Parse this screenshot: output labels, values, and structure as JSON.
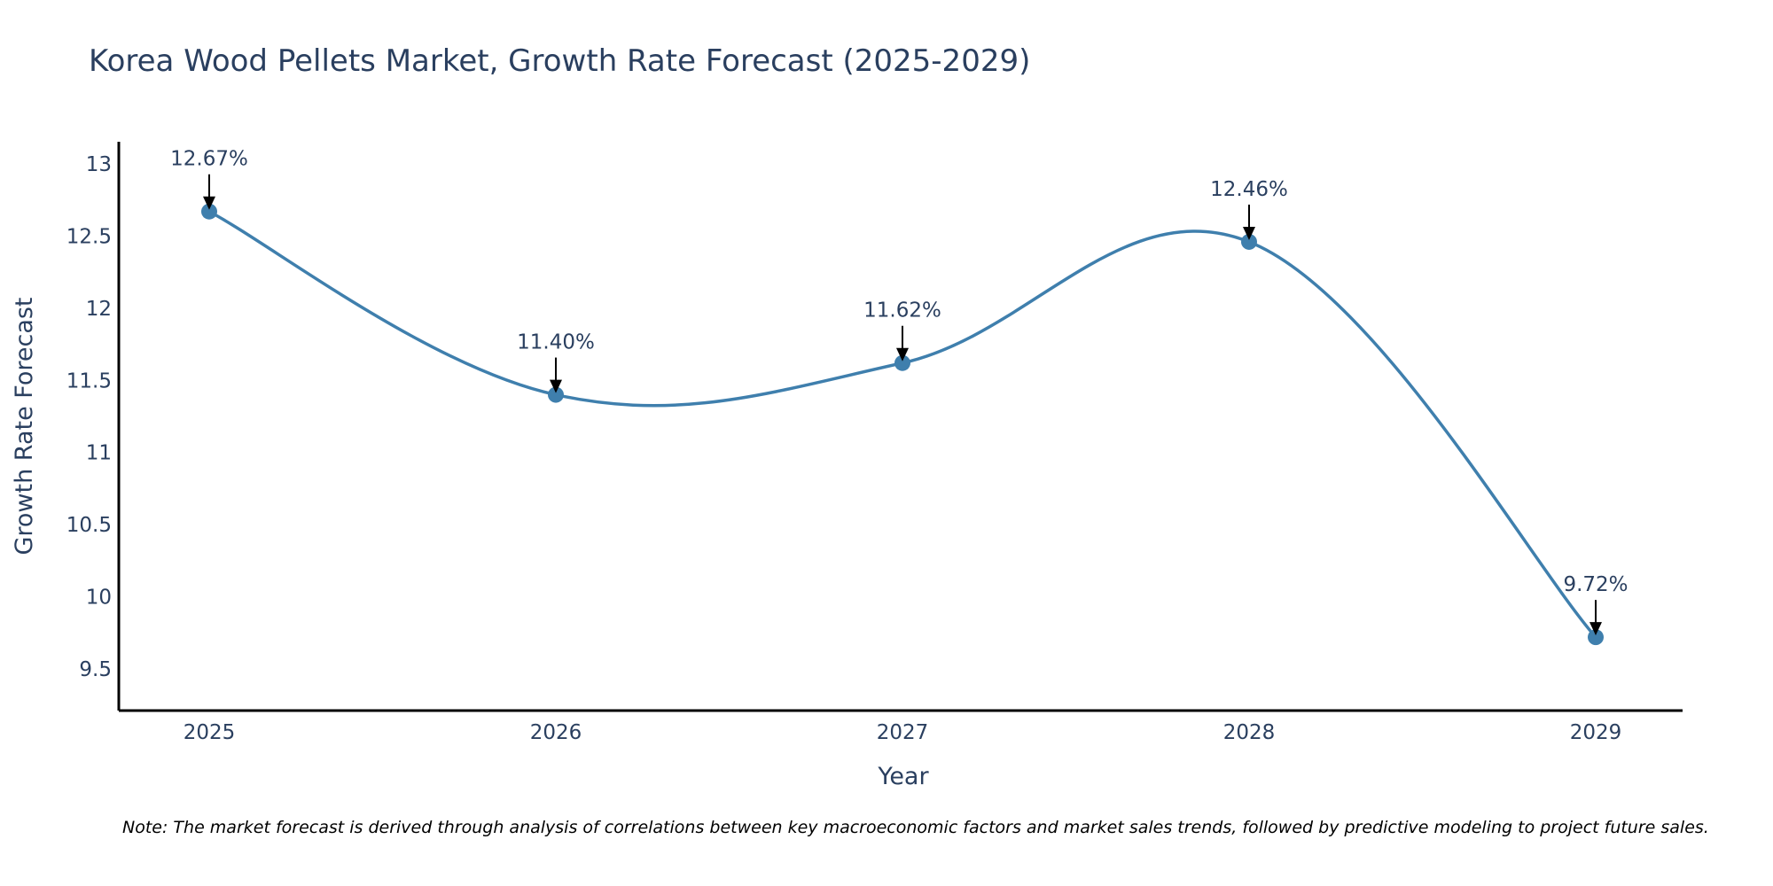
{
  "chart_data": {
    "type": "line",
    "title": "Korea Wood Pellets Market, Growth Rate Forecast (2025-2029)",
    "xlabel": "Year",
    "ylabel": "Growth Rate Forecast",
    "categories": [
      "2025",
      "2026",
      "2027",
      "2028",
      "2029"
    ],
    "values": [
      12.67,
      11.4,
      11.62,
      12.46,
      9.72
    ],
    "labels": [
      "12.67%",
      "11.40%",
      "11.62%",
      "12.46%",
      "9.72%"
    ],
    "yticks": [
      9.5,
      10,
      10.5,
      11,
      11.5,
      12,
      12.5,
      13
    ],
    "ytick_labels": [
      "9.5",
      "10",
      "10.5",
      "11",
      "11.5",
      "12",
      "12.5",
      "13"
    ],
    "ylim": [
      9.22,
      13.15
    ],
    "grid": false,
    "line_shape": "spline",
    "note": "Note: The market forecast is derived through analysis of correlations between key macroeconomic factors and market sales trends, followed by predictive modeling to project future sales."
  },
  "colors": {
    "line": "#3f7fad",
    "marker": "#3f7fad",
    "axis": "#000000",
    "text": "#2a3f5f"
  }
}
